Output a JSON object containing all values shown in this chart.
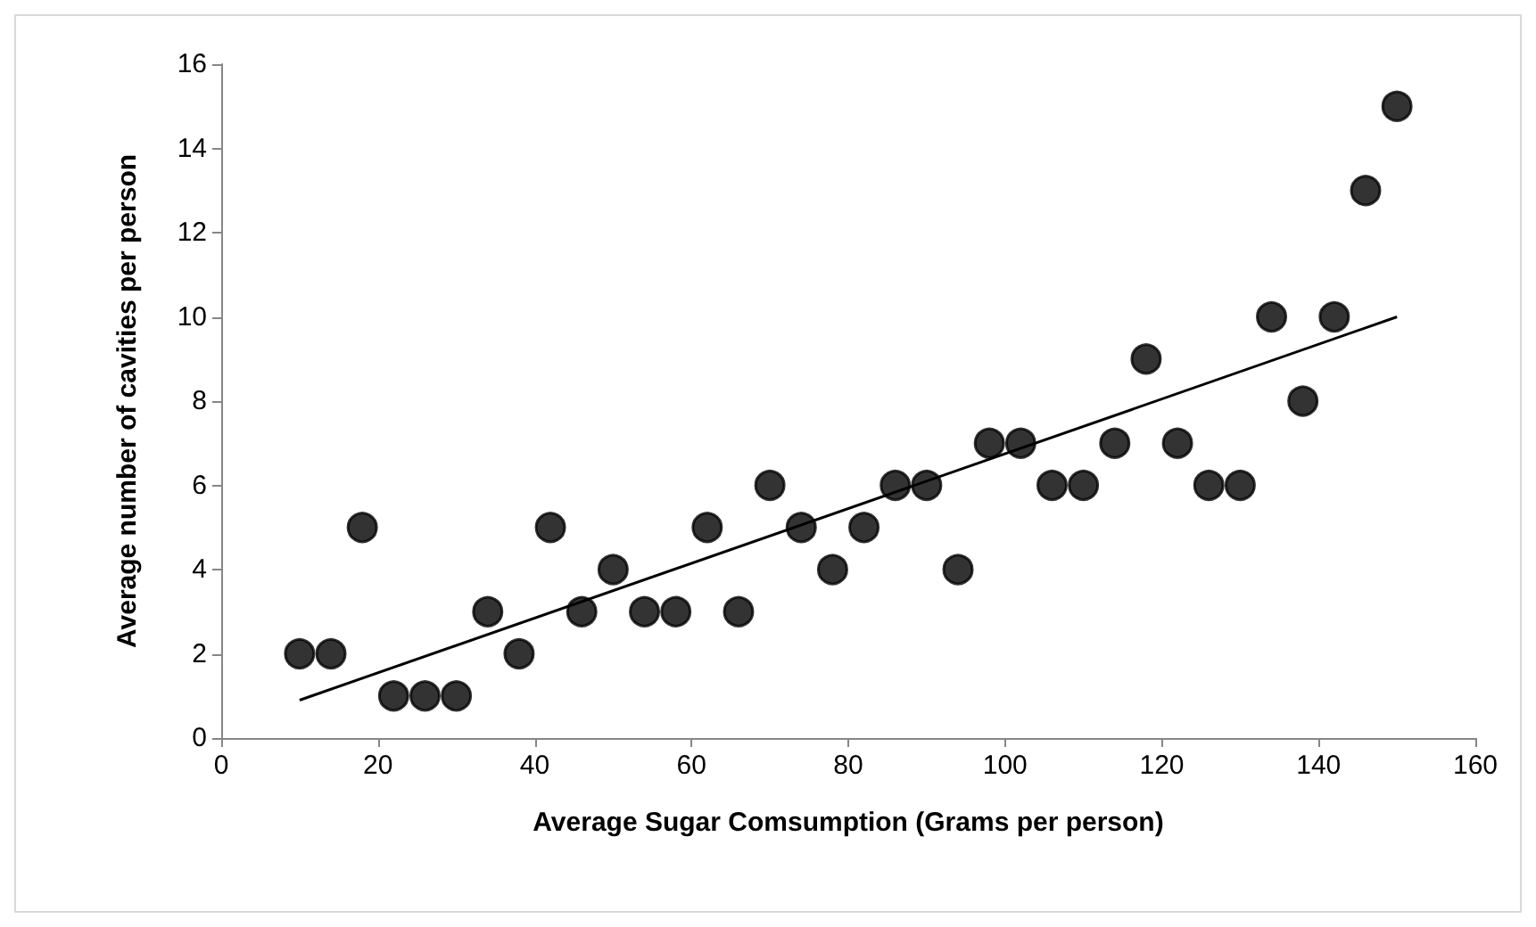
{
  "chart_data": {
    "type": "scatter",
    "xlabel": "Average Sugar Comsumption (Grams per person)",
    "ylabel": "Average number of cavities per person",
    "x": [
      10,
      14,
      18,
      22,
      26,
      30,
      34,
      38,
      42,
      46,
      50,
      54,
      58,
      62,
      66,
      70,
      74,
      78,
      82,
      86,
      90,
      94,
      98,
      102,
      106,
      110,
      114,
      118,
      122,
      126,
      130,
      134,
      138,
      142,
      146,
      150
    ],
    "series": [
      {
        "color": "#000000",
        "values": [
          2,
          2,
          5,
          1,
          1,
          1,
          3,
          2,
          5,
          3,
          4,
          3,
          3,
          5,
          3,
          6,
          5,
          4,
          5,
          6,
          6,
          4,
          7,
          7,
          6,
          6,
          7,
          9,
          7,
          6,
          6,
          10,
          8,
          10,
          13,
          15
        ]
      },
      {
        "type": "line",
        "color": "#000000",
        "marker": "none",
        "x": [
          10,
          150
        ],
        "values": [
          0.9,
          10
        ]
      }
    ],
    "xlim": [
      0,
      160
    ],
    "xticks": [
      0,
      20,
      40,
      60,
      80,
      100,
      120,
      140,
      160
    ],
    "ylim": [
      0,
      16
    ],
    "yticks": [
      0,
      2,
      4,
      6,
      8,
      10,
      12,
      14,
      16
    ],
    "grid": false,
    "marker": "circle",
    "line_style": "solid"
  }
}
